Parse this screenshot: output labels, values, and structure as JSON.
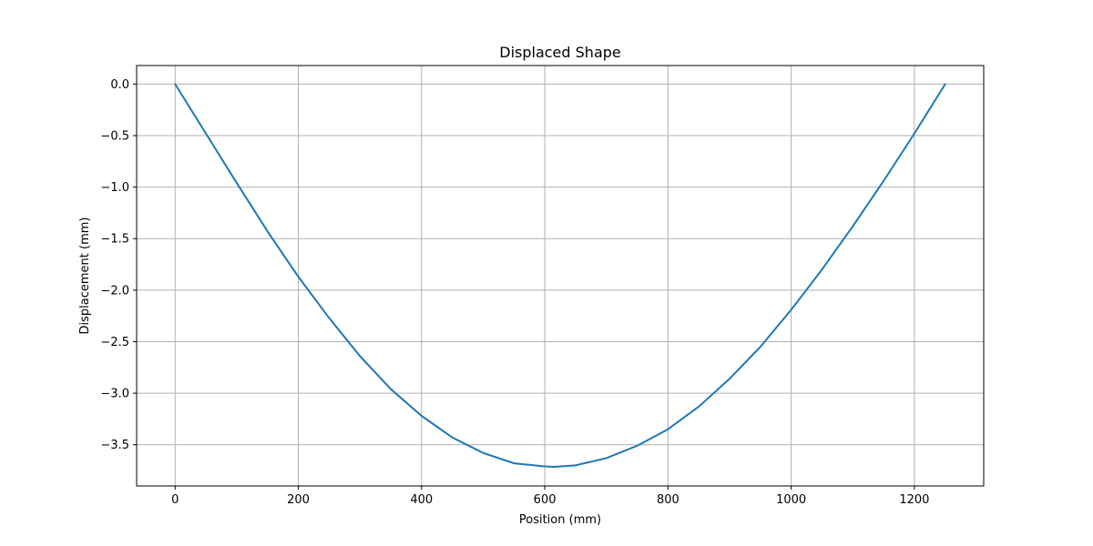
{
  "chart_data": {
    "type": "line",
    "title": "Displaced Shape",
    "xlabel": "Position (mm)",
    "ylabel": "Displacement (mm)",
    "xlim": [
      -62.5,
      1312.5
    ],
    "ylim": [
      -3.9,
      0.18
    ],
    "grid": true,
    "legend": "none",
    "x_ticks": [
      0,
      200,
      400,
      600,
      800,
      1000,
      1200
    ],
    "x_tick_labels": [
      "0",
      "200",
      "400",
      "600",
      "800",
      "1000",
      "1200"
    ],
    "y_ticks": [
      0.0,
      -0.5,
      -1.0,
      -1.5,
      -2.0,
      -2.5,
      -3.0,
      -3.5
    ],
    "y_tick_labels": [
      "0.0",
      "−0.5",
      "−1.0",
      "−1.5",
      "−2.0",
      "−2.5",
      "−3.0",
      "−3.5"
    ],
    "series": [
      {
        "color": "#1f77b4",
        "x": [
          0,
          50,
          100,
          150,
          200,
          250,
          300,
          350,
          400,
          450,
          500,
          550,
          600,
          615,
          650,
          700,
          750,
          800,
          850,
          900,
          950,
          1000,
          1050,
          1100,
          1150,
          1200,
          1250
        ],
        "y": [
          0.0,
          -0.48,
          -0.96,
          -1.43,
          -1.87,
          -2.27,
          -2.64,
          -2.96,
          -3.22,
          -3.43,
          -3.58,
          -3.68,
          -3.71,
          -3.715,
          -3.7,
          -3.63,
          -3.51,
          -3.35,
          -3.13,
          -2.86,
          -2.55,
          -2.19,
          -1.8,
          -1.38,
          -0.94,
          -0.48,
          0.0
        ]
      }
    ]
  }
}
